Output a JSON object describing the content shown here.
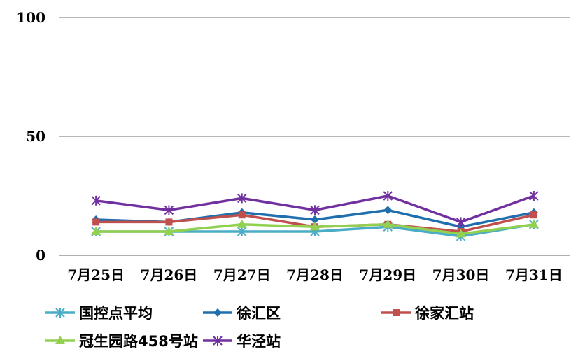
{
  "chart_data": {
    "type": "line",
    "categories": [
      "7月25日",
      "7月26日",
      "7月27日",
      "7月28日",
      "7月29日",
      "7月30日",
      "7月31日"
    ],
    "ylim": [
      0,
      100
    ],
    "yticks": [
      0,
      50,
      100
    ],
    "grid": true,
    "legend_position": "bottom",
    "series": [
      {
        "name": "国控点平均",
        "color": "#4BACC6",
        "marker": "asterisk",
        "values": [
          10,
          10,
          10,
          10,
          12,
          8,
          13
        ]
      },
      {
        "name": "徐汇区",
        "color": "#1F6EAE",
        "marker": "diamond",
        "values": [
          15,
          14,
          18,
          15,
          19,
          12,
          18
        ]
      },
      {
        "name": "徐家汇站",
        "color": "#C0504D",
        "marker": "square",
        "values": [
          14,
          14,
          17,
          12,
          13,
          10,
          17
        ]
      },
      {
        "name": "冠生园路458号站",
        "color": "#92D050",
        "marker": "triangle",
        "values": [
          10,
          10,
          13,
          12,
          13,
          9,
          13
        ]
      },
      {
        "name": "华泾站",
        "color": "#7030A0",
        "marker": "asterisk",
        "values": [
          23,
          19,
          24,
          19,
          25,
          14,
          25
        ]
      }
    ]
  }
}
